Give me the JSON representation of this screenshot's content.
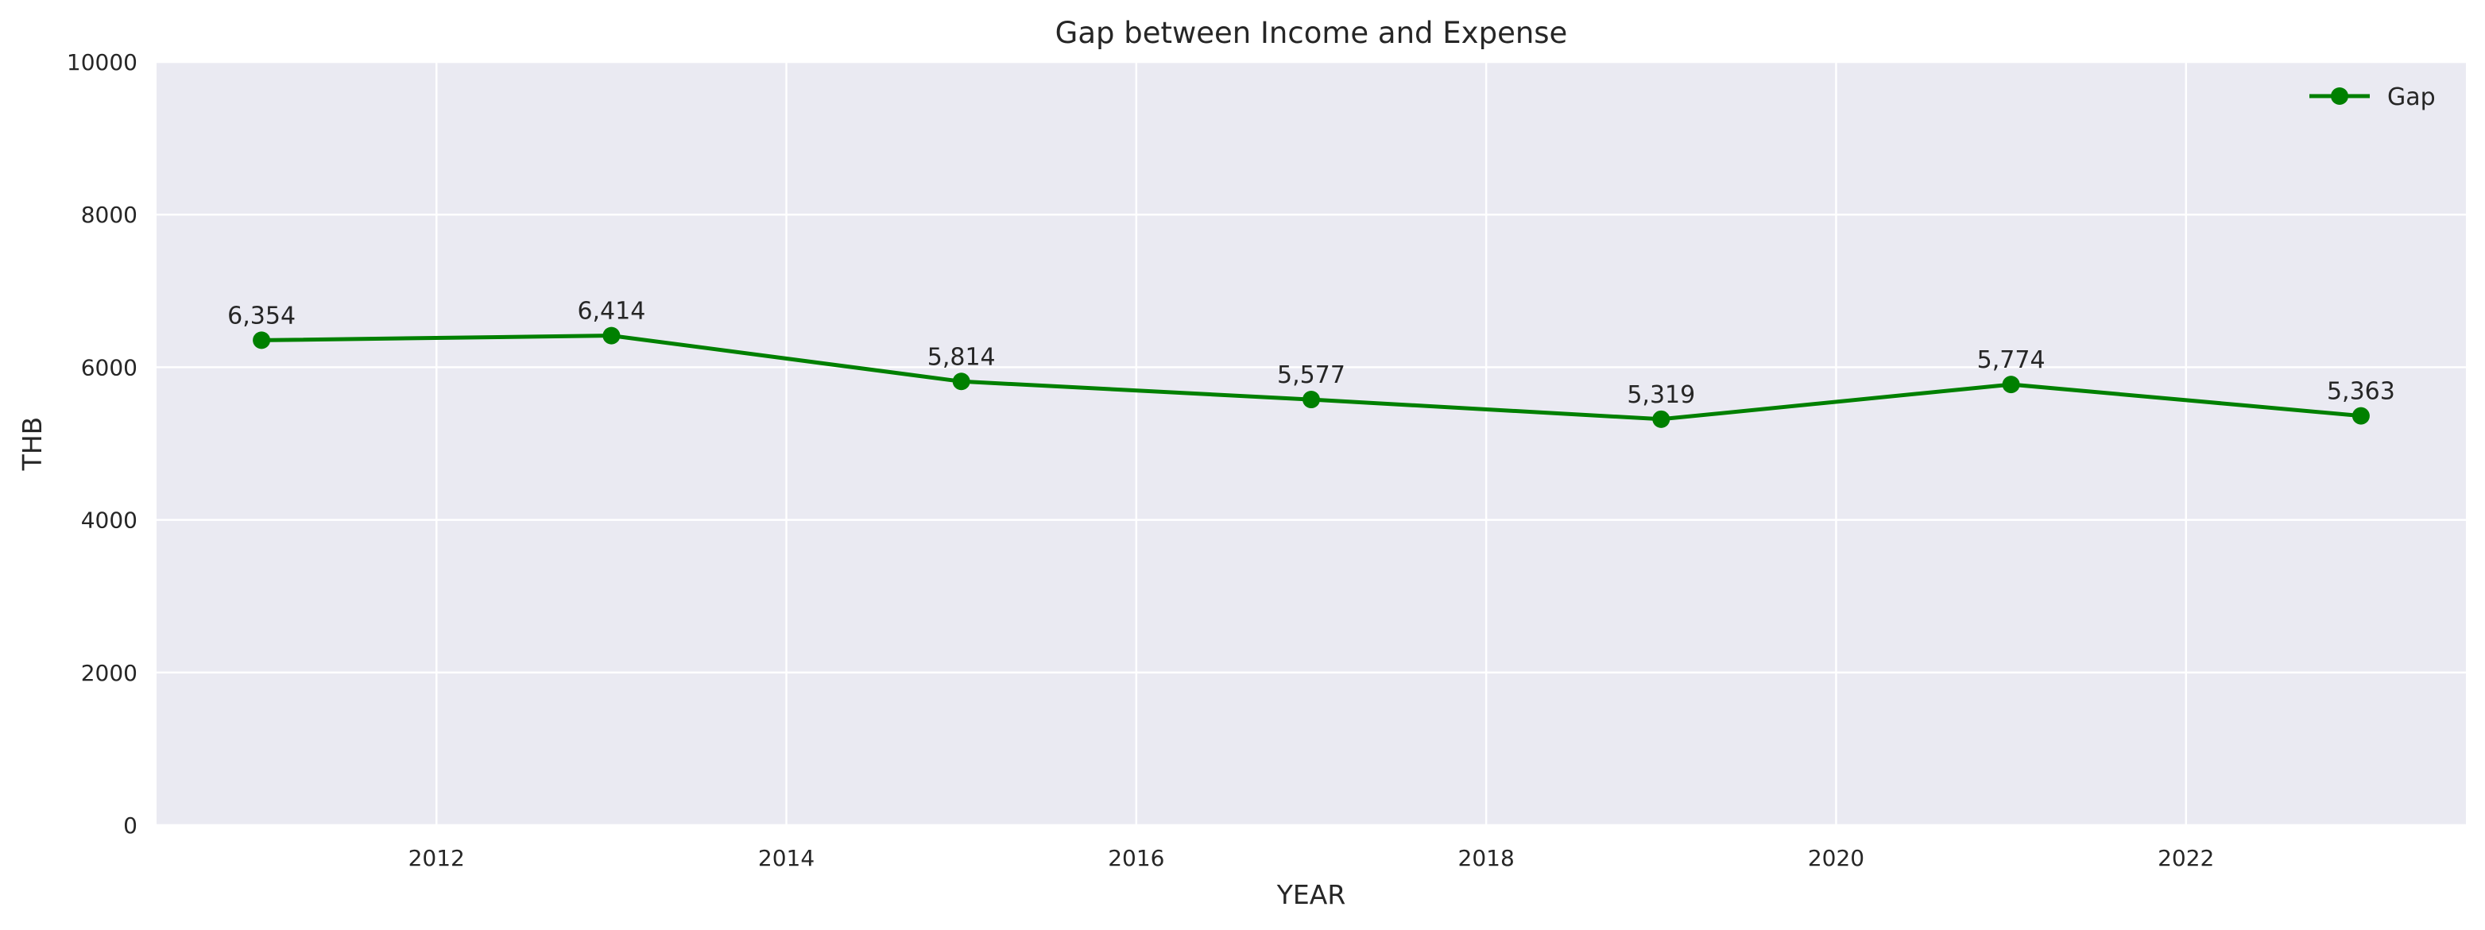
{
  "chart_data": {
    "type": "line",
    "title": "Gap between Income and Expense",
    "xlabel": "YEAR",
    "ylabel": "THB",
    "xlim": [
      2010.4,
      2023.6
    ],
    "ylim": [
      0,
      10000
    ],
    "x_ticks": [
      2012,
      2014,
      2016,
      2018,
      2020,
      2022
    ],
    "y_ticks": [
      0,
      2000,
      4000,
      6000,
      8000,
      10000
    ],
    "grid": true,
    "legend": "top-right",
    "series": [
      {
        "name": "Gap",
        "color": "#008000",
        "marker": "circle",
        "x": [
          2011,
          2013,
          2015,
          2017,
          2019,
          2021,
          2023
        ],
        "y": [
          6354,
          6414,
          5814,
          5577,
          5319,
          5774,
          5363
        ],
        "labels": [
          "6,354",
          "6,414",
          "5,814",
          "5,577",
          "5,319",
          "5,774",
          "5,363"
        ]
      }
    ]
  },
  "colors": {
    "plot_background": "#eaeaf2",
    "grid": "#ffffff",
    "text": "#262626"
  }
}
